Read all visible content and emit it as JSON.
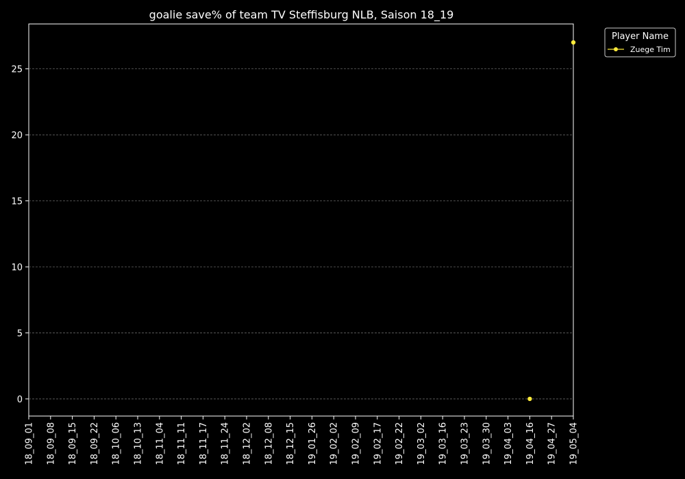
{
  "chart_data": {
    "type": "scatter",
    "title": "goalie save% of team TV Steffisburg NLB, Saison 18_19",
    "xlabel": "",
    "ylabel": "",
    "categories": [
      "18_09_01",
      "18_09_08",
      "18_09_15",
      "18_09_22",
      "18_10_06",
      "18_10_13",
      "18_11_04",
      "18_11_11",
      "18_11_17",
      "18_11_24",
      "18_12_02",
      "18_12_08",
      "18_12_15",
      "19_01_26",
      "19_02_02",
      "19_02_09",
      "19_02_17",
      "19_02_22",
      "19_03_02",
      "19_03_16",
      "19_03_23",
      "19_03_30",
      "19_04_03",
      "19_04_16",
      "19_04_27",
      "19_05_04"
    ],
    "ylim": [
      -1.3,
      28.4
    ],
    "yticks": [
      0,
      5,
      10,
      15,
      20,
      25
    ],
    "grid": "y-dashed",
    "legend": {
      "title": "Player Name",
      "placement": "outside-top-right"
    },
    "series": [
      {
        "name": "Zuege Tim",
        "color": "#ffeb3b",
        "points": [
          {
            "x": "19_04_16",
            "y": 0
          },
          {
            "x": "19_05_04",
            "y": 27
          }
        ]
      }
    ]
  }
}
